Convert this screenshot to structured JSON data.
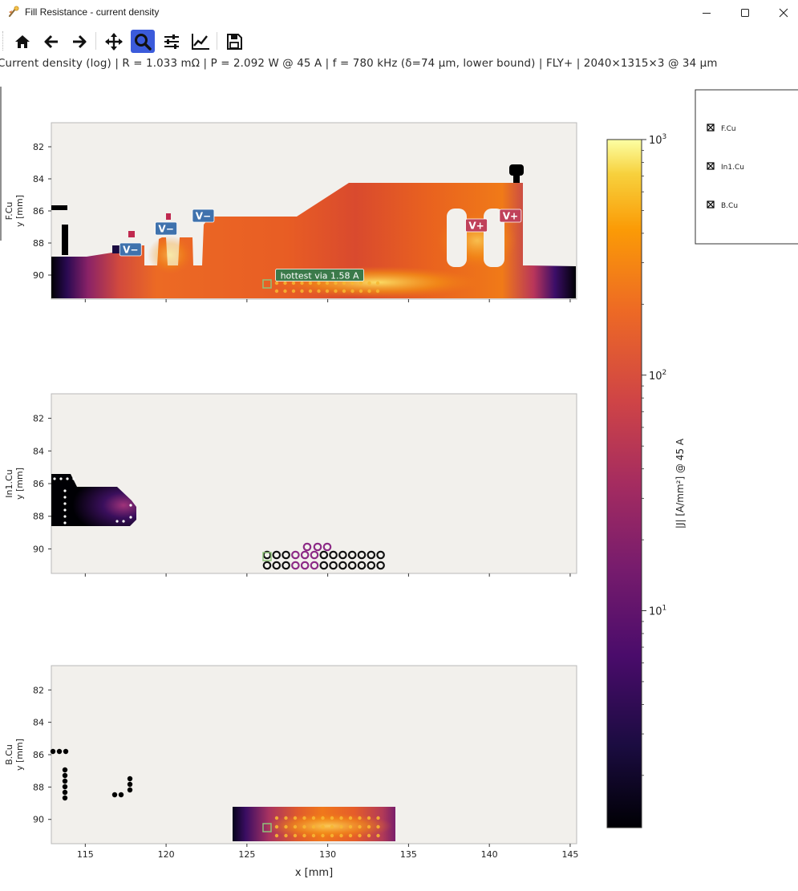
{
  "window": {
    "title": "Fill Resistance - current density",
    "controls": [
      "minimize",
      "maximize",
      "close"
    ]
  },
  "toolbar": {
    "buttons": [
      {
        "name": "home",
        "icon": "home-icon",
        "active": false
      },
      {
        "name": "back",
        "icon": "arrow-left-icon",
        "active": false
      },
      {
        "name": "forward",
        "icon": "arrow-right-icon",
        "active": false
      },
      {
        "name": "pan",
        "icon": "move-icon",
        "active": false
      },
      {
        "name": "zoom",
        "icon": "zoom-icon",
        "active": true
      },
      {
        "name": "configure-subplots",
        "icon": "sliders-icon",
        "active": false
      },
      {
        "name": "edit-axes",
        "icon": "chart-line-icon",
        "active": false
      },
      {
        "name": "save",
        "icon": "save-icon",
        "active": false
      }
    ]
  },
  "status_text": "Current density (log)  |  R = 1.033 mΩ  |  P = 2.092 W @ 45 A  |  f = 780 kHz (δ=74 µm, lower bound)  |  FLY+  |  2040×1315×3 @ 34 µm",
  "legend": {
    "items": [
      "F.Cu",
      "In1.Cu",
      "B.Cu"
    ]
  },
  "accent_color": "#3b5bdb",
  "chart_data": [
    {
      "type": "heatmap",
      "layer": "F.Cu",
      "ylabel_lines": [
        "F.Cu",
        "y [mm]"
      ],
      "xlim": [
        112.9,
        145.4
      ],
      "ylim": [
        91.5,
        80.5
      ],
      "y_ticks": [
        "82",
        "84",
        "86",
        "88",
        "90"
      ],
      "annotations": [
        {
          "text": "V−",
          "x": 117.8,
          "y": 88.4
        },
        {
          "text": "V−",
          "x": 120.0,
          "y": 87.1
        },
        {
          "text": "V−",
          "x": 122.3,
          "y": 86.3
        },
        {
          "text": "V+",
          "x": 139.2,
          "y": 86.9
        },
        {
          "text": "V+",
          "x": 141.3,
          "y": 86.3
        },
        {
          "text": "hottest via 1.58 A",
          "x": 129.5,
          "y": 90.0
        }
      ]
    },
    {
      "type": "heatmap",
      "layer": "In1.Cu",
      "ylabel_lines": [
        "In1.Cu",
        "y [mm]"
      ],
      "xlim": [
        112.9,
        145.4
      ],
      "ylim": [
        91.5,
        80.5
      ],
      "y_ticks": [
        "82",
        "84",
        "86",
        "88",
        "90"
      ]
    },
    {
      "type": "heatmap",
      "layer": "B.Cu",
      "ylabel_lines": [
        "B.Cu",
        "y [mm]"
      ],
      "xlim": [
        112.9,
        145.4
      ],
      "ylim": [
        91.5,
        80.5
      ],
      "y_ticks": [
        "82",
        "84",
        "86",
        "88",
        "90"
      ],
      "x_ticks": [
        "115",
        "120",
        "125",
        "130",
        "135",
        "140",
        "145"
      ],
      "xlabel": "x [mm]"
    }
  ],
  "colorbar": {
    "label": "|J| [A/mm²] @ 45 A",
    "scale": "log",
    "range": [
      1.2,
      1000
    ],
    "ticks": [
      {
        "base": "10",
        "exp": "3",
        "value": 1000
      },
      {
        "base": "10",
        "exp": "2",
        "value": 100
      },
      {
        "base": "10",
        "exp": "1",
        "value": 10
      }
    ],
    "colormap": "inferno"
  }
}
